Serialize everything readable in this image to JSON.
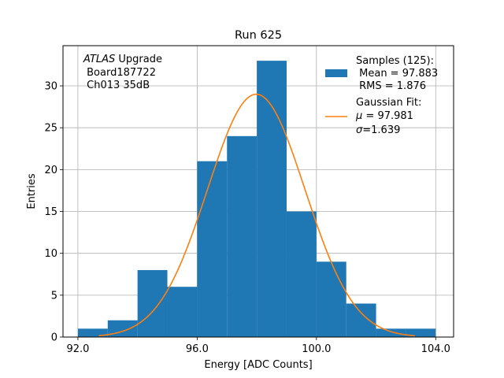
{
  "chart_data": {
    "type": "bar",
    "title": "Run 625",
    "xlabel": "Energy [ADC Counts]",
    "ylabel": "Entries",
    "xlim": [
      91.5,
      104.6
    ],
    "ylim": [
      0,
      34.8
    ],
    "xticks": [
      92.0,
      96.0,
      100.0,
      104.0
    ],
    "xtick_labels": [
      "92.0",
      "96.0",
      "100.0",
      "104.0"
    ],
    "yticks": [
      0,
      5,
      10,
      15,
      20,
      25,
      30
    ],
    "grid": true,
    "bin_edges": [
      92.0,
      93.0,
      94.0,
      95.0,
      96.0,
      97.0,
      98.0,
      99.0,
      100.0,
      101.0,
      102.0,
      103.0,
      104.0
    ],
    "values": [
      1,
      2,
      8,
      6,
      21,
      24,
      33,
      15,
      9,
      4,
      1,
      1
    ],
    "bar_color": "#1f77b4",
    "fit": {
      "mu": 97.981,
      "sigma": 1.639,
      "amplitude": 29.0,
      "x_min": 92.7,
      "x_max": 103.3,
      "color": "#ff7f0e"
    },
    "annotation": {
      "italic": "ATLAS",
      "rest": " Upgrade",
      "line2": " Board187722",
      "line3": " Ch013 35dB"
    },
    "legend": {
      "position": "top-right",
      "samples": {
        "line1": "Samples (125):",
        "line2": " Mean = 97.883",
        "line3": " RMS = 1.876"
      },
      "fit": {
        "line1": "Gaussian Fit:",
        "line2_sym": "μ",
        "line2_val": " = 97.981",
        "line3_sym": "σ",
        "line3_val": "=1.639"
      }
    }
  }
}
